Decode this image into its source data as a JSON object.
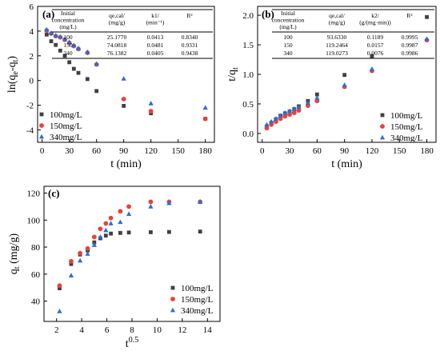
{
  "chart_data": [
    {
      "panel": "(a)",
      "type": "scatter",
      "xlabel": "t (min)",
      "ylabel": "ln(qe-qt)",
      "xlim": [
        -5,
        190
      ],
      "ylim": [
        -5,
        6
      ],
      "xticks": [
        "0",
        "30",
        "60",
        "90",
        "120",
        "150",
        "180"
      ],
      "yticks": [
        "-4",
        "-2",
        "0",
        "2",
        "4",
        "6"
      ],
      "legend_position": "bottom-left",
      "table": {
        "headers": [
          "Initial concentration (mg/L)",
          "qe,cal/ (mg/g)",
          "k1/ (min⁻¹)",
          "R²"
        ],
        "rows": [
          [
            "100",
            "25.1770",
            "0.0413",
            "0.8340"
          ],
          [
            "150",
            "74.0818",
            "0.0481",
            "0.9331"
          ],
          [
            "340",
            "76.1382",
            "0.0405",
            "0.9438"
          ]
        ]
      },
      "series": [
        {
          "name": "100mg/L",
          "marker": "square",
          "color": "#404040",
          "x": [
            5,
            10,
            15,
            20,
            25,
            30,
            35,
            40,
            50,
            60,
            90,
            120,
            180
          ],
          "y": [
            3.72,
            3.18,
            2.88,
            2.42,
            2.0,
            1.48,
            0.95,
            0.62,
            0.12,
            -0.85,
            -2.05,
            -2.65,
            -3.1
          ]
        },
        {
          "name": "150mg/L",
          "marker": "circle",
          "color": "#e8413a",
          "x": [
            5,
            10,
            15,
            20,
            25,
            30,
            35,
            40,
            50,
            60,
            90,
            120,
            180
          ],
          "y": [
            4.05,
            3.8,
            3.6,
            3.5,
            3.3,
            3.05,
            2.8,
            2.55,
            2.25,
            1.3,
            -1.5,
            -2.48,
            -3.1
          ]
        },
        {
          "name": "340mg/L",
          "marker": "triangle",
          "color": "#2a6fcf",
          "x": [
            5,
            10,
            15,
            20,
            25,
            30,
            35,
            40,
            50,
            60,
            90,
            120,
            180
          ],
          "y": [
            4.12,
            3.85,
            3.65,
            3.55,
            3.35,
            3.12,
            2.85,
            2.62,
            2.3,
            1.35,
            0.15,
            -1.85,
            -2.2
          ]
        }
      ]
    },
    {
      "panel": "(b)",
      "type": "scatter",
      "xlabel": "t (min)",
      "ylabel": "t/qt",
      "xlim": [
        -5,
        190
      ],
      "ylim": [
        -0.15,
        2.15
      ],
      "xticks": [
        "0",
        "30",
        "60",
        "90",
        "120",
        "150",
        "180"
      ],
      "yticks": [
        "0.0",
        "0.5",
        "1.0",
        "1.5",
        "2.0"
      ],
      "legend_position": "right",
      "table": {
        "headers": [
          "Initial concentration (mg/L)",
          "qe,cal/ (mg/g)",
          "k2/ (g/(mg·min))",
          "R²"
        ],
        "rows": [
          [
            "100",
            "93.6330",
            "0.1189",
            "0.9995"
          ],
          [
            "150",
            "119.2464",
            "0.0157",
            "0.9987"
          ],
          [
            "340",
            "119.0273",
            "0.0076",
            "0.9986"
          ]
        ]
      },
      "series": [
        {
          "name": "100mg/L",
          "marker": "square",
          "color": "#404040",
          "x": [
            5,
            10,
            15,
            20,
            25,
            30,
            35,
            40,
            50,
            60,
            90,
            120,
            180
          ],
          "y": [
            0.12,
            0.18,
            0.24,
            0.3,
            0.34,
            0.37,
            0.41,
            0.46,
            0.55,
            0.66,
            0.99,
            1.31,
            1.97
          ]
        },
        {
          "name": "150mg/L",
          "marker": "circle",
          "color": "#e8413a",
          "x": [
            5,
            10,
            15,
            20,
            25,
            30,
            35,
            40,
            50,
            60,
            90,
            120,
            180
          ],
          "y": [
            0.09,
            0.15,
            0.2,
            0.25,
            0.29,
            0.32,
            0.35,
            0.39,
            0.47,
            0.55,
            0.79,
            1.06,
            1.58
          ]
        },
        {
          "name": "340mg/L",
          "marker": "triangle",
          "color": "#2a6fcf",
          "x": [
            5,
            10,
            15,
            20,
            25,
            30,
            35,
            40,
            50,
            60,
            90,
            120,
            180
          ],
          "y": [
            0.15,
            0.2,
            0.25,
            0.3,
            0.35,
            0.38,
            0.42,
            0.45,
            0.52,
            0.6,
            0.82,
            1.09,
            1.6
          ]
        }
      ]
    },
    {
      "panel": "(c)",
      "type": "scatter",
      "xlabel": "t0.5",
      "ylabel": "qt (mg/g)",
      "xlim": [
        1,
        15
      ],
      "ylim": [
        25,
        125
      ],
      "xticks": [
        "2",
        "4",
        "6",
        "8",
        "10",
        "12",
        "14"
      ],
      "yticks": [
        "40",
        "60",
        "80",
        "100",
        "120"
      ],
      "legend_position": "bottom-right",
      "series": [
        {
          "name": "100mg/L",
          "marker": "square",
          "color": "#404040",
          "x": [
            2.24,
            3.16,
            3.87,
            4.47,
            5.0,
            5.48,
            5.92,
            6.32,
            7.07,
            7.75,
            9.49,
            10.95,
            13.42
          ],
          "y": [
            49.5,
            67.5,
            74.5,
            77.5,
            83.5,
            86.5,
            88.5,
            90.0,
            90.5,
            90.8,
            91.0,
            91.2,
            91.5
          ]
        },
        {
          "name": "150mg/L",
          "marker": "circle",
          "color": "#e8413a",
          "x": [
            2.24,
            3.16,
            3.87,
            4.47,
            5.0,
            5.48,
            5.92,
            6.32,
            7.07,
            7.75,
            9.49,
            10.95,
            13.42
          ],
          "y": [
            51.5,
            69.5,
            75.5,
            79.0,
            87.5,
            93.5,
            97.5,
            101.5,
            106.5,
            110.0,
            113.5,
            113.5,
            113.5
          ]
        },
        {
          "name": "340mg/L",
          "marker": "triangle",
          "color": "#2a6fcf",
          "x": [
            2.24,
            3.16,
            3.87,
            4.47,
            5.0,
            5.48,
            5.92,
            6.32,
            7.07,
            7.75,
            9.49,
            10.95,
            13.42
          ],
          "y": [
            32.5,
            59.0,
            70.0,
            75.0,
            81.5,
            87.5,
            92.5,
            97.5,
            98.5,
            104.5,
            110.0,
            112.5,
            113.5
          ]
        }
      ]
    }
  ]
}
